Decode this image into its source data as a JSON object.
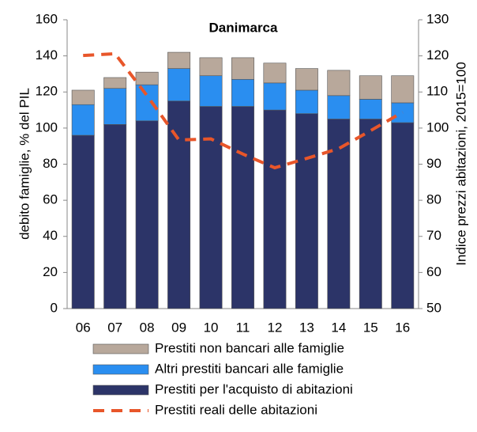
{
  "chart_data": {
    "type": "bar",
    "stacked": true,
    "title": "Danimarca",
    "y_label": "debito famiglie,  % del PIL",
    "y2_label": "Indice prezzi abitazioni, 2015=100",
    "categories": [
      "06",
      "07",
      "08",
      "09",
      "10",
      "11",
      "12",
      "13",
      "14",
      "15",
      "16"
    ],
    "series": [
      {
        "name": "Prestiti per l'acquisto di abitazioni",
        "color": "#2c3468",
        "values": [
          96,
          102,
          104,
          115,
          112,
          112,
          110,
          108,
          105,
          105,
          103
        ]
      },
      {
        "name": "Altri prestiti bancari alle famiglie",
        "color": "#2a8ef0",
        "values": [
          17,
          20,
          20,
          18,
          17,
          15,
          15,
          13,
          13,
          11,
          11
        ]
      },
      {
        "name": "Prestiti non bancari alle famiglie",
        "color": "#b8a89b",
        "values": [
          8,
          6,
          7,
          9,
          10,
          12,
          11,
          12,
          14,
          13,
          15
        ]
      },
      {
        "name": "Prestiti reali delle abitazioni",
        "color": "#e8562a",
        "type": "line",
        "dashed": true,
        "axis": "y2",
        "values": [
          120.1,
          120.6,
          109,
          96.7,
          97,
          92.8,
          89,
          91.6,
          94.3,
          99.3,
          104.4
        ]
      }
    ],
    "ylim": [
      0,
      160
    ],
    "yticks": [
      0,
      20,
      40,
      60,
      80,
      100,
      120,
      140,
      160
    ],
    "y2lim": [
      50,
      130
    ],
    "y2ticks": [
      50,
      60,
      70,
      80,
      90,
      100,
      110,
      120,
      130
    ],
    "grid": false
  }
}
